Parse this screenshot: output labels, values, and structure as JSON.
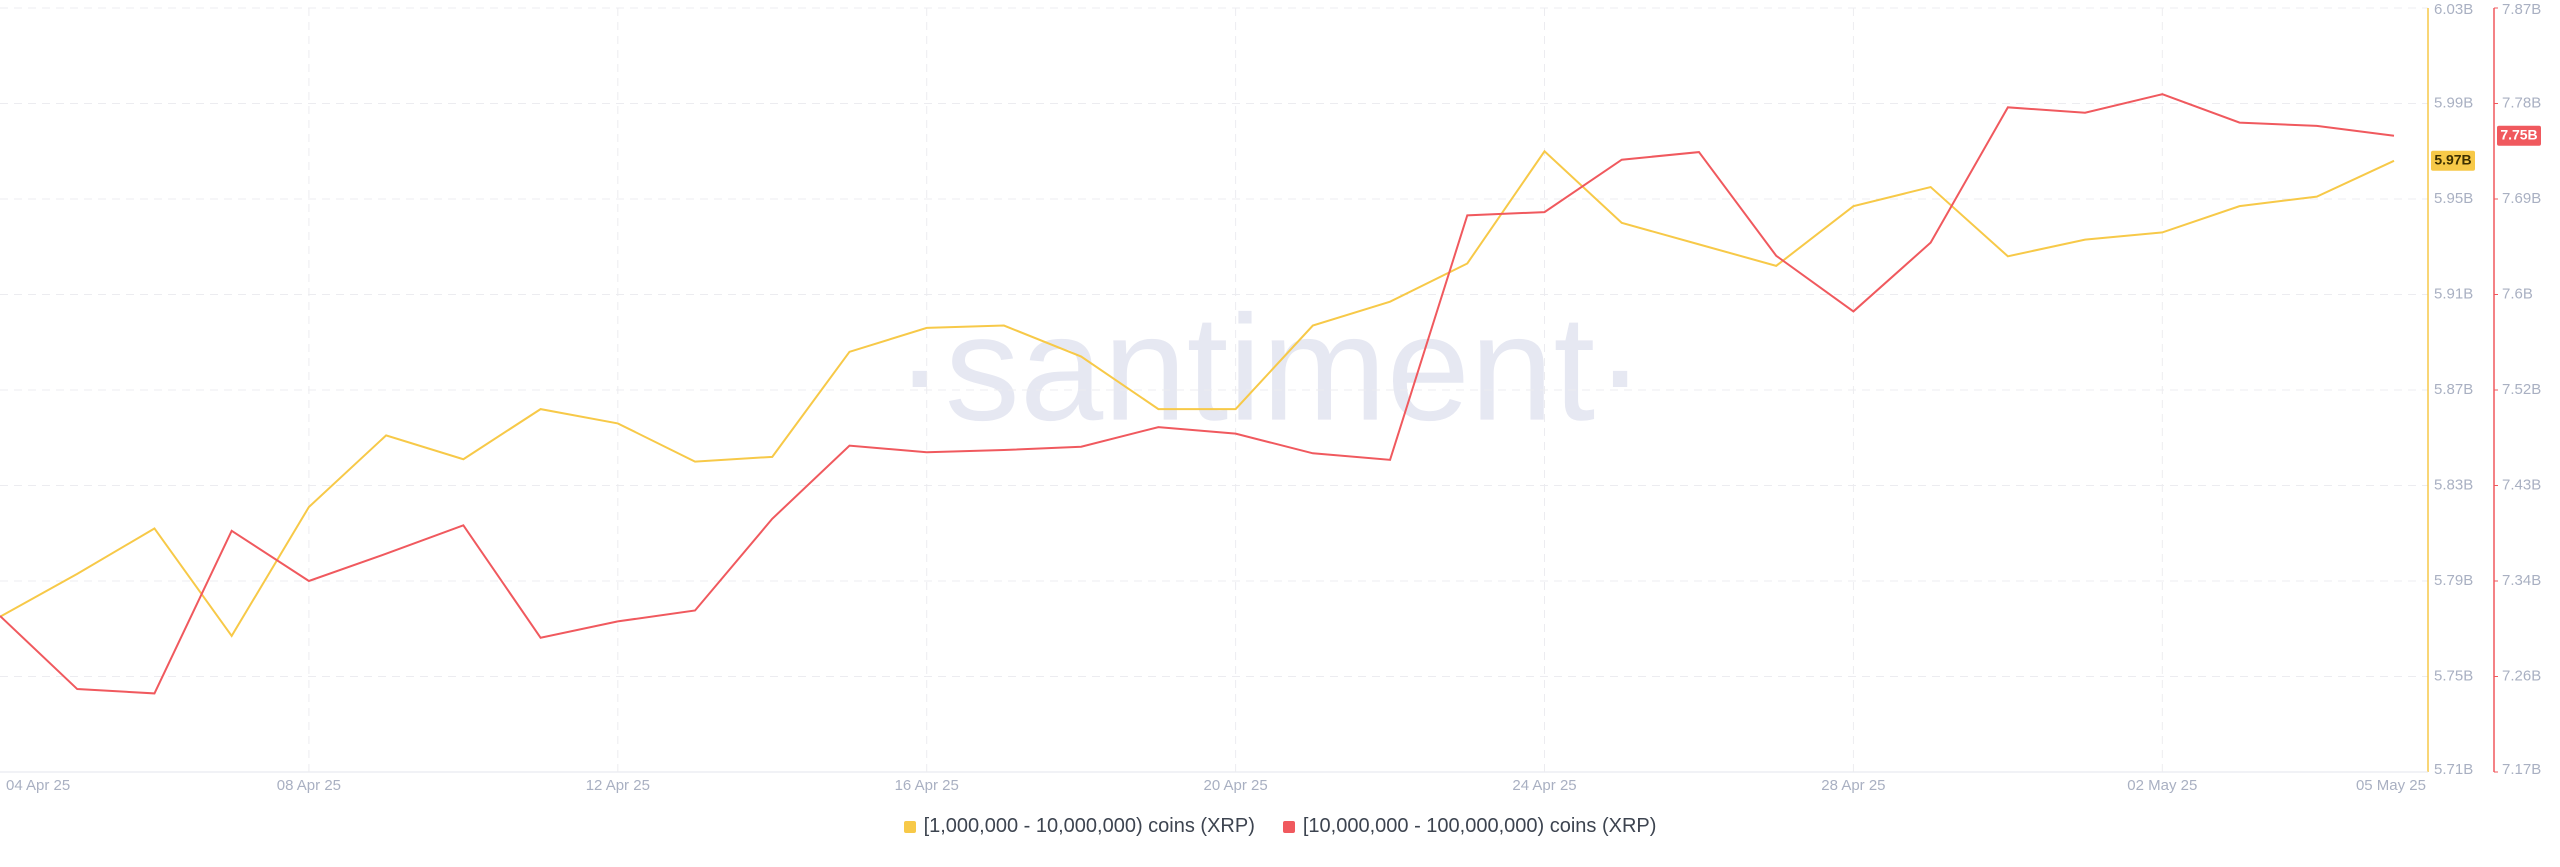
{
  "chart_data": {
    "type": "line",
    "watermark": "·santiment·",
    "categories": [
      "04 Apr 25",
      null,
      null,
      null,
      "08 Apr 25",
      null,
      null,
      null,
      "12 Apr 25",
      null,
      null,
      null,
      "16 Apr 25",
      null,
      null,
      null,
      "20 Apr 25",
      null,
      null,
      null,
      "24 Apr 25",
      null,
      null,
      null,
      "28 Apr 25",
      null,
      null,
      null,
      "02 May 25",
      null,
      null,
      "05 May 25"
    ],
    "ylim": [
      5.71,
      6.03
    ],
    "yticks": [
      {
        "value": 5.71,
        "label": "5.71B"
      },
      {
        "value": 5.75,
        "label": "5.75B"
      },
      {
        "value": 5.79,
        "label": "5.79B"
      },
      {
        "value": 5.83,
        "label": "5.83B"
      },
      {
        "value": 5.87,
        "label": "5.87B"
      },
      {
        "value": 5.91,
        "label": "5.91B"
      },
      {
        "value": 5.95,
        "label": "5.95B"
      },
      {
        "value": 5.99,
        "label": "5.99B"
      },
      {
        "value": 6.03,
        "label": "6.03B"
      }
    ],
    "y2lim": [
      7.17,
      7.87
    ],
    "y2ticks": [
      {
        "value": 7.17,
        "label": "7.17B"
      },
      {
        "value": 7.2575,
        "label": "7.26B"
      },
      {
        "value": 7.345,
        "label": "7.34B"
      },
      {
        "value": 7.4325,
        "label": "7.43B"
      },
      {
        "value": 7.52,
        "label": "7.52B"
      },
      {
        "value": 7.6075,
        "label": "7.6B"
      },
      {
        "value": 7.695,
        "label": "7.69B"
      },
      {
        "value": 7.7825,
        "label": "7.78B"
      },
      {
        "value": 7.87,
        "label": "7.87B"
      }
    ],
    "grid": true,
    "series": [
      {
        "name": "[1,000,000 - 10,000,000) coins (XRP)",
        "color": "#f7c948",
        "axis": "y",
        "values": [
          5.775,
          5.793,
          5.812,
          5.767,
          5.821,
          5.851,
          5.841,
          5.862,
          5.856,
          5.84,
          5.842,
          5.886,
          5.896,
          5.897,
          5.884,
          5.862,
          5.862,
          5.897,
          5.907,
          5.923,
          5.97,
          5.94,
          5.931,
          5.922,
          5.947,
          5.955,
          5.926,
          5.933,
          5.936,
          5.947,
          5.951,
          5.966
        ],
        "last_label": "5.97B"
      },
      {
        "name": "[10,000,000 - 100,000,000) coins (XRP)",
        "color": "#f0595e",
        "axis": "y2",
        "values": [
          7.313,
          7.246,
          7.242,
          7.391,
          7.345,
          7.37,
          7.396,
          7.293,
          7.308,
          7.318,
          7.402,
          7.469,
          7.463,
          7.465,
          7.468,
          7.486,
          7.48,
          7.462,
          7.456,
          7.68,
          7.683,
          7.731,
          7.738,
          7.643,
          7.592,
          7.655,
          7.779,
          7.774,
          7.791,
          7.765,
          7.762,
          7.753
        ],
        "last_label": "7.75B"
      }
    ]
  }
}
